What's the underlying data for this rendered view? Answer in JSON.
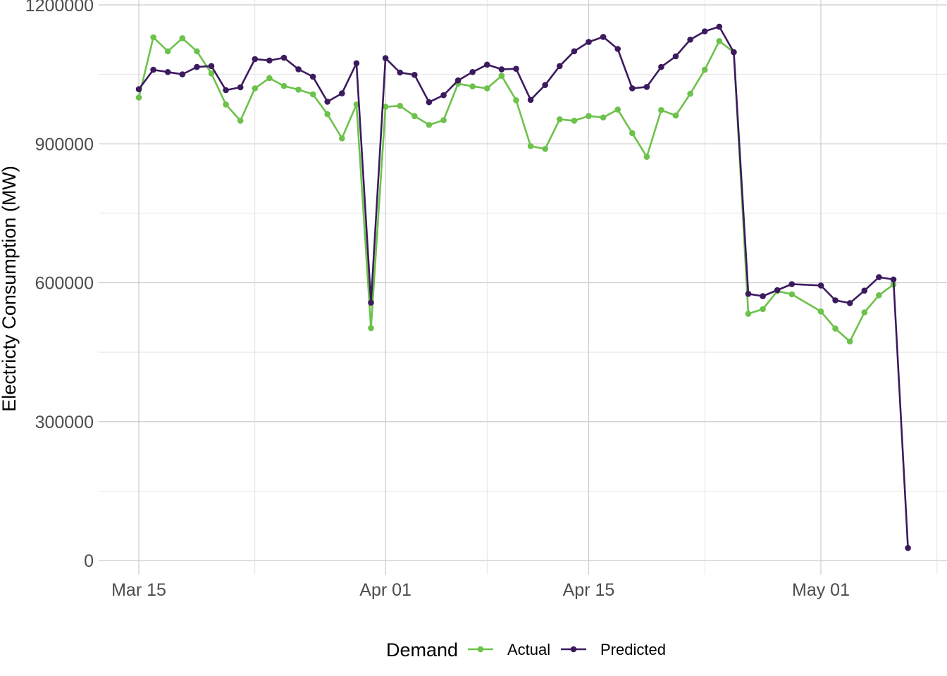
{
  "chart_data": {
    "type": "line",
    "title": "",
    "xlabel": "",
    "ylabel": "Electricty Consumption (MW)",
    "ylim": [
      0,
      1200000
    ],
    "xlim": [
      "2021-03-12",
      "2021-05-10"
    ],
    "yticks": [
      0,
      300000,
      600000,
      900000,
      1200000
    ],
    "ytick_labels": [
      "0",
      "300000",
      "600000",
      "900000",
      "1200000"
    ],
    "xticks": [
      "2021-03-15",
      "2021-04-01",
      "2021-04-15",
      "2021-05-01"
    ],
    "xtick_labels": [
      "Mar 15",
      "Apr 01",
      "Apr 15",
      "May 01"
    ],
    "x_minor_gridlines": [
      "2021-03-23",
      "2021-04-08",
      "2021-04-23",
      "2021-05-09"
    ],
    "grid": true,
    "legend": {
      "title": "Demand",
      "position": "bottom"
    },
    "series": [
      {
        "name": "Actual",
        "color": "#6cc24a",
        "points": [
          [
            "2021-03-15",
            1000000
          ],
          [
            "2021-03-16",
            1130000
          ],
          [
            "2021-03-17",
            1100000
          ],
          [
            "2021-03-18",
            1128000
          ],
          [
            "2021-03-19",
            1100000
          ],
          [
            "2021-03-20",
            1052000
          ],
          [
            "2021-03-21",
            985000
          ],
          [
            "2021-03-22",
            950000
          ],
          [
            "2021-03-23",
            1020000
          ],
          [
            "2021-03-24",
            1042000
          ],
          [
            "2021-03-25",
            1025000
          ],
          [
            "2021-03-26",
            1017000
          ],
          [
            "2021-03-27",
            1007000
          ],
          [
            "2021-03-28",
            964000
          ],
          [
            "2021-03-29",
            912000
          ],
          [
            "2021-03-30",
            985000
          ],
          [
            "2021-03-31",
            502000
          ],
          [
            "2021-04-01",
            980000
          ],
          [
            "2021-04-02",
            982000
          ],
          [
            "2021-04-03",
            960000
          ],
          [
            "2021-04-04",
            941000
          ],
          [
            "2021-04-05",
            951000
          ],
          [
            "2021-04-06",
            1030000
          ],
          [
            "2021-04-07",
            1024000
          ],
          [
            "2021-04-08",
            1020000
          ],
          [
            "2021-04-09",
            1047000
          ],
          [
            "2021-04-10",
            994000
          ],
          [
            "2021-04-11",
            895000
          ],
          [
            "2021-04-12",
            889000
          ],
          [
            "2021-04-13",
            953000
          ],
          [
            "2021-04-14",
            950000
          ],
          [
            "2021-04-15",
            960000
          ],
          [
            "2021-04-16",
            957000
          ],
          [
            "2021-04-17",
            974000
          ],
          [
            "2021-04-18",
            923000
          ],
          [
            "2021-04-19",
            872000
          ],
          [
            "2021-04-20",
            973000
          ],
          [
            "2021-04-21",
            961000
          ],
          [
            "2021-04-22",
            1008000
          ],
          [
            "2021-04-23",
            1060000
          ],
          [
            "2021-04-24",
            1122000
          ],
          [
            "2021-04-25",
            1098000
          ],
          [
            "2021-04-26",
            533000
          ],
          [
            "2021-04-27",
            543000
          ],
          [
            "2021-04-28",
            582000
          ],
          [
            "2021-04-29",
            575000
          ],
          [
            "2021-05-01",
            538000
          ],
          [
            "2021-05-02",
            501000
          ],
          [
            "2021-05-03",
            473000
          ],
          [
            "2021-05-04",
            536000
          ],
          [
            "2021-05-05",
            573000
          ],
          [
            "2021-05-06",
            596000
          ]
        ]
      },
      {
        "name": "Predicted",
        "color": "#3b1a5e",
        "points": [
          [
            "2021-03-15",
            1018000
          ],
          [
            "2021-03-16",
            1060000
          ],
          [
            "2021-03-17",
            1055000
          ],
          [
            "2021-03-18",
            1050000
          ],
          [
            "2021-03-19",
            1066000
          ],
          [
            "2021-03-20",
            1068000
          ],
          [
            "2021-03-21",
            1016000
          ],
          [
            "2021-03-22",
            1022000
          ],
          [
            "2021-03-23",
            1083000
          ],
          [
            "2021-03-24",
            1080000
          ],
          [
            "2021-03-25",
            1086000
          ],
          [
            "2021-03-26",
            1061000
          ],
          [
            "2021-03-27",
            1045000
          ],
          [
            "2021-03-28",
            991000
          ],
          [
            "2021-03-29",
            1009000
          ],
          [
            "2021-03-30",
            1074000
          ],
          [
            "2021-03-31",
            557000
          ],
          [
            "2021-04-01",
            1085000
          ],
          [
            "2021-04-02",
            1054000
          ],
          [
            "2021-04-03",
            1049000
          ],
          [
            "2021-04-04",
            990000
          ],
          [
            "2021-04-05",
            1005000
          ],
          [
            "2021-04-06",
            1037000
          ],
          [
            "2021-04-07",
            1055000
          ],
          [
            "2021-04-08",
            1071000
          ],
          [
            "2021-04-09",
            1061000
          ],
          [
            "2021-04-10",
            1062000
          ],
          [
            "2021-04-11",
            995000
          ],
          [
            "2021-04-12",
            1027000
          ],
          [
            "2021-04-13",
            1068000
          ],
          [
            "2021-04-14",
            1100000
          ],
          [
            "2021-04-15",
            1120000
          ],
          [
            "2021-04-16",
            1131000
          ],
          [
            "2021-04-17",
            1105000
          ],
          [
            "2021-04-18",
            1020000
          ],
          [
            "2021-04-19",
            1023000
          ],
          [
            "2021-04-20",
            1066000
          ],
          [
            "2021-04-21",
            1089000
          ],
          [
            "2021-04-22",
            1125000
          ],
          [
            "2021-04-23",
            1143000
          ],
          [
            "2021-04-24",
            1153000
          ],
          [
            "2021-04-25",
            1098000
          ],
          [
            "2021-04-26",
            576000
          ],
          [
            "2021-04-27",
            571000
          ],
          [
            "2021-04-28",
            584000
          ],
          [
            "2021-04-29",
            597000
          ],
          [
            "2021-05-01",
            594000
          ],
          [
            "2021-05-02",
            562000
          ],
          [
            "2021-05-03",
            556000
          ],
          [
            "2021-05-04",
            583000
          ],
          [
            "2021-05-05",
            612000
          ],
          [
            "2021-05-06",
            607000
          ],
          [
            "2021-05-07",
            27000
          ]
        ]
      }
    ]
  }
}
